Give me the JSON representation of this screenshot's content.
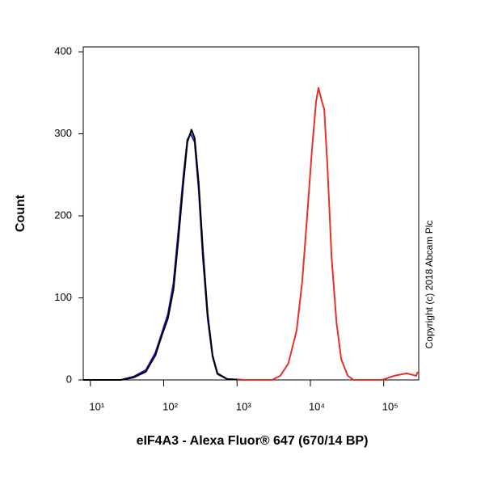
{
  "chart_data": {
    "type": "line",
    "xlabel": "eIF4A3 - Alexa Fluor® 647 (670/14 BP)",
    "ylabel": "Count",
    "annotation": "Copyright (c) 2018 Abcam Plc",
    "xscale": "log",
    "xlim": [
      8,
      300000
    ],
    "ylim": [
      0,
      406
    ],
    "xticks": [
      {
        "value": 10,
        "label": "10¹"
      },
      {
        "value": 100,
        "label": "10²"
      },
      {
        "value": 1000,
        "label": "10³"
      },
      {
        "value": 10000,
        "label": "10⁴"
      },
      {
        "value": 100000,
        "label": "10⁵"
      }
    ],
    "yticks": [
      0,
      100,
      200,
      300,
      400
    ],
    "series": [
      {
        "color": "#1a1acc",
        "x": [
          8,
          26,
          39,
          57,
          77,
          95,
          114,
          136,
          158,
          185,
          210,
          233,
          264,
          300,
          341,
          398,
          464,
          541,
          736,
          1227
        ],
        "values": [
          0,
          0,
          4,
          12,
          33,
          58,
          80,
          118,
          180,
          248,
          293,
          300,
          290,
          232,
          150,
          75,
          28,
          7,
          1,
          0
        ]
      },
      {
        "color": "#000000",
        "x": [
          8,
          26,
          39,
          57,
          77,
          95,
          114,
          136,
          158,
          185,
          210,
          239,
          264,
          300,
          341,
          398,
          464,
          541,
          736,
          1227
        ],
        "values": [
          0,
          0,
          3,
          10,
          30,
          55,
          75,
          110,
          170,
          240,
          290,
          305,
          295,
          240,
          160,
          80,
          30,
          8,
          1,
          0
        ]
      },
      {
        "color": "#e8302a",
        "x": [
          1000,
          3000,
          3880,
          5010,
          6480,
          7740,
          9030,
          10500,
          11970,
          12900,
          14300,
          15450,
          17100,
          19450,
          22700,
          26400,
          32400,
          38800,
          95000,
          139000,
          205000,
          278000,
          290000
        ],
        "values": [
          0,
          0,
          5,
          20,
          60,
          120,
          200,
          280,
          340,
          356,
          340,
          330,
          260,
          150,
          70,
          25,
          5,
          0,
          0,
          5,
          8,
          5,
          10
        ]
      }
    ]
  }
}
